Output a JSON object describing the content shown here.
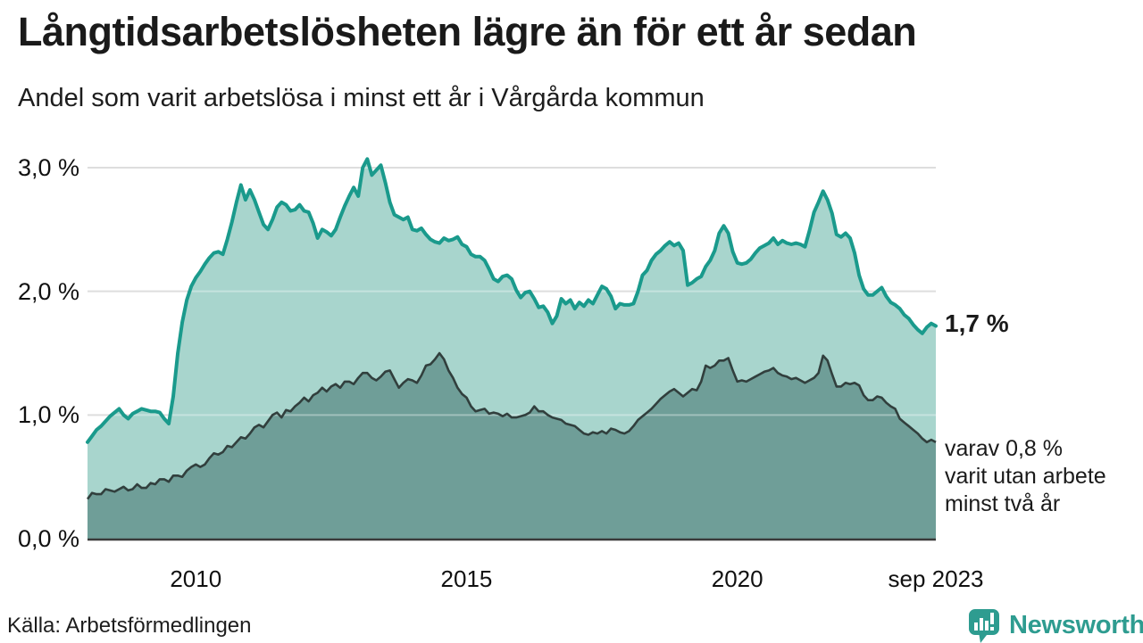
{
  "chart_data": {
    "type": "area",
    "title": "Långtidsarbetslösheten lägre än för ett år sedan",
    "subtitle": "Andel som varit arbetslösa i minst ett år i Vårgårda kommun",
    "x_start": "2008-01",
    "x_end": "2023-09",
    "frequency": "monthly",
    "ylim": [
      0,
      3.1
    ],
    "grid": true,
    "yticks": [
      {
        "value": 3,
        "label": "3,0 %"
      },
      {
        "value": 2,
        "label": "2,0 %"
      },
      {
        "value": 1,
        "label": "1,0 %"
      },
      {
        "value": 0,
        "label": "0,0 %"
      }
    ],
    "xticks": [
      {
        "month_index": 24,
        "label": "2010"
      },
      {
        "month_index": 84,
        "label": "2015"
      },
      {
        "month_index": 144,
        "label": "2020"
      },
      {
        "month_index": 188,
        "label": "sep 2023"
      }
    ],
    "series": [
      {
        "name": "arbetslösa minst ett år",
        "line_color": "#1a9a8c",
        "fill_color": "#a8d5cd",
        "end_value": 1.7,
        "values": [
          0.78,
          0.83,
          0.88,
          0.91,
          0.95,
          0.99,
          1.02,
          1.05,
          1.0,
          0.97,
          1.01,
          1.03,
          1.05,
          1.04,
          1.03,
          1.03,
          1.02,
          0.97,
          0.93,
          1.15,
          1.5,
          1.75,
          1.93,
          2.04,
          2.11,
          2.16,
          2.22,
          2.27,
          2.31,
          2.32,
          2.3,
          2.42,
          2.56,
          2.72,
          2.86,
          2.74,
          2.82,
          2.74,
          2.64,
          2.54,
          2.5,
          2.58,
          2.68,
          2.72,
          2.7,
          2.65,
          2.66,
          2.7,
          2.65,
          2.64,
          2.55,
          2.43,
          2.5,
          2.48,
          2.45,
          2.5,
          2.6,
          2.69,
          2.77,
          2.84,
          2.77,
          3.0,
          3.07,
          2.94,
          2.98,
          3.02,
          2.88,
          2.72,
          2.62,
          2.6,
          2.58,
          2.6,
          2.5,
          2.49,
          2.51,
          2.46,
          2.42,
          2.4,
          2.39,
          2.43,
          2.41,
          2.42,
          2.44,
          2.38,
          2.36,
          2.3,
          2.28,
          2.28,
          2.25,
          2.18,
          2.1,
          2.08,
          2.12,
          2.13,
          2.1,
          2.01,
          1.95,
          1.99,
          2.0,
          1.94,
          1.87,
          1.88,
          1.83,
          1.74,
          1.8,
          1.94,
          1.9,
          1.93,
          1.86,
          1.91,
          1.88,
          1.93,
          1.9,
          1.97,
          2.04,
          2.02,
          1.96,
          1.86,
          1.9,
          1.89,
          1.89,
          1.9,
          2.0,
          2.13,
          2.17,
          2.25,
          2.3,
          2.33,
          2.37,
          2.4,
          2.37,
          2.39,
          2.33,
          2.05,
          2.07,
          2.1,
          2.12,
          2.2,
          2.25,
          2.33,
          2.47,
          2.53,
          2.47,
          2.32,
          2.23,
          2.22,
          2.23,
          2.26,
          2.31,
          2.35,
          2.37,
          2.39,
          2.43,
          2.38,
          2.41,
          2.39,
          2.38,
          2.39,
          2.38,
          2.36,
          2.49,
          2.64,
          2.72,
          2.81,
          2.74,
          2.63,
          2.46,
          2.44,
          2.47,
          2.43,
          2.31,
          2.13,
          2.02,
          1.97,
          1.97,
          2.0,
          2.03,
          1.96,
          1.91,
          1.89,
          1.86,
          1.81,
          1.78,
          1.73,
          1.69,
          1.66,
          1.71,
          1.74,
          1.72
        ]
      },
      {
        "name": "arbetslösa minst två år",
        "line_color": "#313f3d",
        "fill_color": "#6f9e98",
        "end_value": 0.8,
        "values": [
          0.32,
          0.37,
          0.36,
          0.36,
          0.4,
          0.39,
          0.38,
          0.4,
          0.42,
          0.39,
          0.4,
          0.44,
          0.41,
          0.41,
          0.45,
          0.44,
          0.48,
          0.48,
          0.46,
          0.51,
          0.51,
          0.5,
          0.55,
          0.58,
          0.6,
          0.58,
          0.6,
          0.65,
          0.69,
          0.68,
          0.7,
          0.75,
          0.74,
          0.78,
          0.82,
          0.81,
          0.85,
          0.9,
          0.92,
          0.9,
          0.95,
          1.0,
          1.02,
          0.98,
          1.04,
          1.03,
          1.07,
          1.1,
          1.14,
          1.11,
          1.16,
          1.18,
          1.22,
          1.19,
          1.23,
          1.25,
          1.22,
          1.27,
          1.27,
          1.25,
          1.3,
          1.34,
          1.34,
          1.3,
          1.28,
          1.31,
          1.35,
          1.36,
          1.29,
          1.22,
          1.26,
          1.29,
          1.28,
          1.26,
          1.32,
          1.4,
          1.41,
          1.45,
          1.5,
          1.45,
          1.36,
          1.3,
          1.22,
          1.17,
          1.14,
          1.07,
          1.03,
          1.04,
          1.05,
          1.01,
          1.02,
          1.01,
          0.99,
          1.01,
          0.98,
          0.98,
          0.99,
          1.0,
          1.02,
          1.07,
          1.03,
          1.03,
          1.0,
          0.98,
          0.97,
          0.96,
          0.93,
          0.92,
          0.91,
          0.88,
          0.85,
          0.84,
          0.86,
          0.85,
          0.87,
          0.85,
          0.89,
          0.88,
          0.86,
          0.85,
          0.87,
          0.91,
          0.96,
          0.99,
          1.02,
          1.05,
          1.09,
          1.13,
          1.16,
          1.19,
          1.21,
          1.18,
          1.15,
          1.18,
          1.21,
          1.2,
          1.27,
          1.4,
          1.38,
          1.4,
          1.44,
          1.44,
          1.46,
          1.36,
          1.27,
          1.28,
          1.27,
          1.29,
          1.31,
          1.33,
          1.35,
          1.36,
          1.38,
          1.34,
          1.32,
          1.31,
          1.29,
          1.3,
          1.28,
          1.26,
          1.28,
          1.3,
          1.34,
          1.48,
          1.44,
          1.33,
          1.23,
          1.23,
          1.26,
          1.25,
          1.26,
          1.24,
          1.16,
          1.12,
          1.12,
          1.15,
          1.14,
          1.1,
          1.07,
          1.05,
          0.97,
          0.94,
          0.91,
          0.88,
          0.85,
          0.81,
          0.78,
          0.8,
          0.78
        ]
      }
    ],
    "annotations": {
      "primary_value": "1,7 %",
      "secondary_lines": [
        "varav 0,8 %",
        "varit utan arbete",
        "minst två år"
      ]
    }
  },
  "footer": {
    "source_label": "Källa: Arbetsförmedlingen",
    "brand_name": "Newsworthy",
    "brand_color": "#2e9c90"
  }
}
